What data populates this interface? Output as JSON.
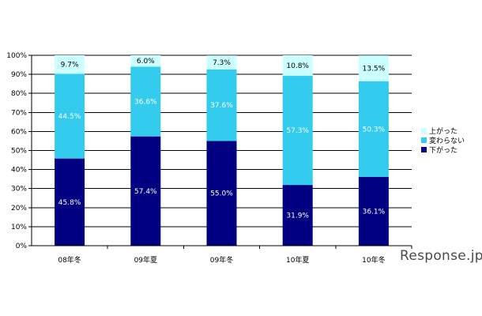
{
  "chart_data": {
    "type": "bar",
    "stacked": true,
    "categories": [
      "08年冬",
      "09年夏",
      "09年冬",
      "10年夏",
      "10年冬"
    ],
    "series": [
      {
        "name": "下がった",
        "values": [
          45.8,
          57.4,
          55.0,
          31.9,
          36.1
        ],
        "labels": [
          "45.8%",
          "57.4%",
          "55.0%",
          "31.9%",
          "36.1%"
        ],
        "color": "#000080"
      },
      {
        "name": "変わらない",
        "values": [
          44.5,
          36.6,
          37.6,
          57.3,
          50.3
        ],
        "labels": [
          "44.5%",
          "36.6%",
          "37.6%",
          "57.3%",
          "50.3%"
        ],
        "color": "#33ccee"
      },
      {
        "name": "上がった",
        "values": [
          9.7,
          6.0,
          7.3,
          10.8,
          13.5
        ],
        "labels": [
          "9.7%",
          "6.0%",
          "7.3%",
          "10.8%",
          "13.5%"
        ],
        "color": "#ccffff"
      }
    ],
    "yticks": [
      "0%",
      "10%",
      "20%",
      "30%",
      "40%",
      "50%",
      "60%",
      "70%",
      "80%",
      "90%",
      "100%"
    ],
    "ylim": [
      0,
      100
    ],
    "grid": true,
    "legend_position": "right",
    "legend_order": [
      "上がった",
      "変わらない",
      "下がった"
    ]
  },
  "watermark": "Response.jp"
}
